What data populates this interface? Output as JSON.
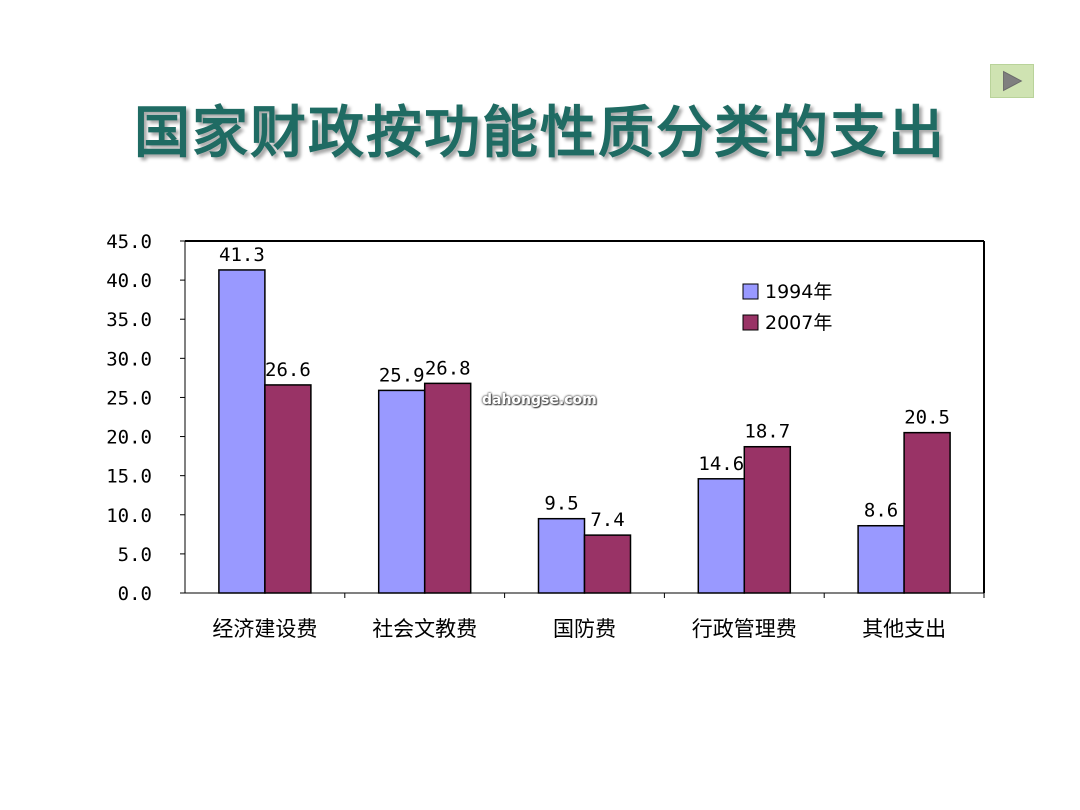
{
  "slide": {
    "title": "国家财政按功能性质分类的支出",
    "next_icon": "play-triangle-icon"
  },
  "watermark": "dahongse.com",
  "colors": {
    "title": "#1f6b63",
    "series_1994": "#9999ff",
    "series_2007": "#993366",
    "next_button_bg": "#cfe3b2"
  },
  "chart_data": {
    "type": "bar",
    "categories": [
      "经济建设费",
      "社会文教费",
      "国防费",
      "行政管理费",
      "其他支出"
    ],
    "series": [
      {
        "name": "1994年",
        "values": [
          41.3,
          25.9,
          9.5,
          14.6,
          8.6
        ],
        "labels": [
          "41.3",
          "25.9",
          "9.5",
          "14.6",
          "8.6"
        ],
        "color": "#9999ff"
      },
      {
        "name": "2007年",
        "values": [
          26.6,
          26.8,
          7.4,
          18.7,
          20.5
        ],
        "labels": [
          "26.6",
          "26.8",
          "7.4",
          "18.7",
          "20.5"
        ],
        "color": "#993366"
      }
    ],
    "y_ticks": [
      "0.0",
      "5.0",
      "10.0",
      "15.0",
      "20.0",
      "25.0",
      "30.0",
      "35.0",
      "40.0",
      "45.0"
    ],
    "ylim": [
      0,
      45
    ],
    "grid": false,
    "legend_position": "top-right"
  }
}
